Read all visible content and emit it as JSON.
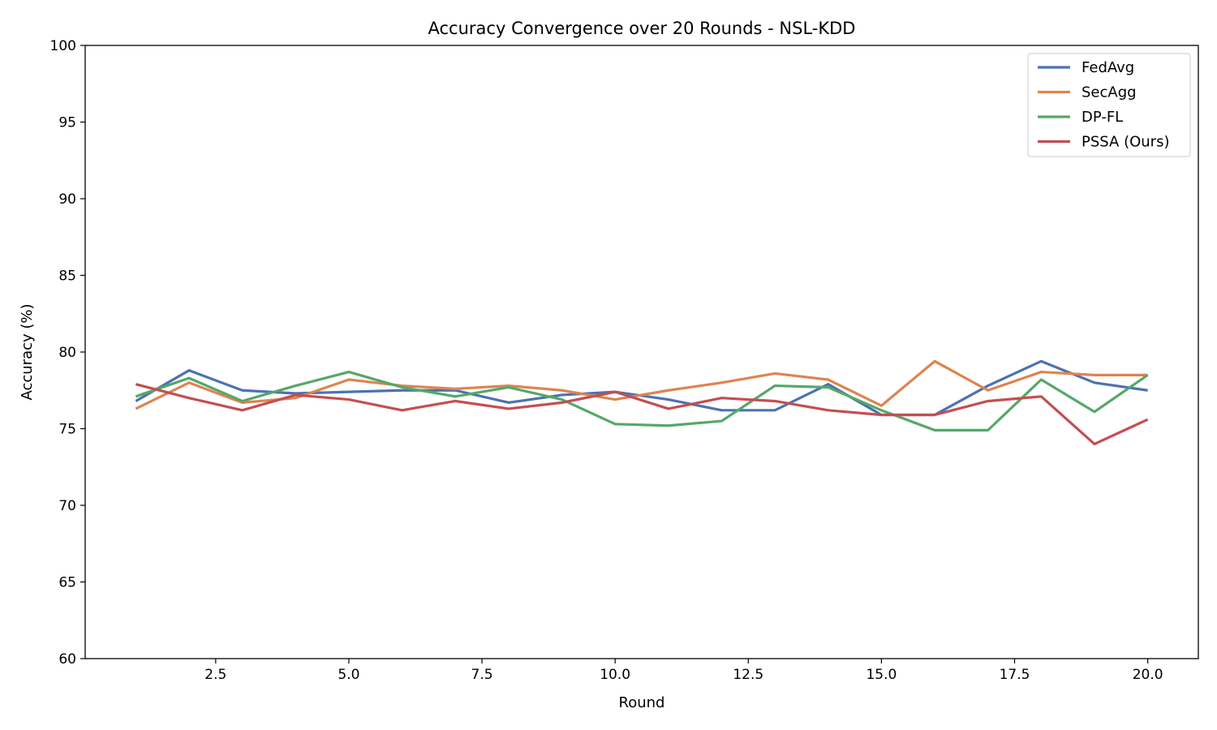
{
  "chart_data": {
    "type": "line",
    "title": "Accuracy Convergence over 20 Rounds - NSL-KDD",
    "xlabel": "Round",
    "ylabel": "Accuracy (%)",
    "xlim": [
      0.05,
      20.95
    ],
    "ylim": [
      60,
      100
    ],
    "xticks": [
      2.5,
      5.0,
      7.5,
      10.0,
      12.5,
      15.0,
      17.5,
      20.0
    ],
    "xtick_labels": [
      "2.5",
      "5.0",
      "7.5",
      "10.0",
      "12.5",
      "15.0",
      "17.5",
      "20.0"
    ],
    "yticks": [
      60,
      65,
      70,
      75,
      80,
      85,
      90,
      95,
      100
    ],
    "ytick_labels": [
      "60",
      "65",
      "70",
      "75",
      "80",
      "85",
      "90",
      "95",
      "100"
    ],
    "grid": false,
    "legend_position": "top-right",
    "x": [
      1,
      2,
      3,
      4,
      5,
      6,
      7,
      8,
      9,
      10,
      11,
      12,
      13,
      14,
      15,
      16,
      17,
      18,
      19,
      20
    ],
    "series": [
      {
        "name": "FedAvg",
        "color": "#4c72b0",
        "values": [
          76.8,
          78.8,
          77.5,
          77.3,
          77.4,
          77.5,
          77.5,
          76.7,
          77.2,
          77.4,
          76.9,
          76.2,
          76.2,
          77.9,
          75.9,
          75.9,
          77.8,
          79.4,
          78.0,
          77.5
        ]
      },
      {
        "name": "SecAgg",
        "color": "#dd8452",
        "values": [
          76.3,
          78.0,
          76.7,
          77.0,
          78.2,
          77.8,
          77.6,
          77.8,
          77.5,
          76.9,
          77.5,
          78.0,
          78.6,
          78.2,
          76.5,
          79.4,
          77.5,
          78.7,
          78.5,
          78.5
        ]
      },
      {
        "name": "DP-FL",
        "color": "#55a868",
        "values": [
          77.1,
          78.3,
          76.8,
          77.8,
          78.7,
          77.7,
          77.1,
          77.7,
          76.9,
          75.3,
          75.2,
          75.5,
          77.8,
          77.7,
          76.2,
          74.9,
          74.9,
          78.2,
          76.1,
          78.5
        ]
      },
      {
        "name": "PSSA (Ours)",
        "color": "#c44e52",
        "values": [
          77.9,
          77.0,
          76.2,
          77.2,
          76.9,
          76.2,
          76.8,
          76.3,
          76.7,
          77.4,
          76.3,
          77.0,
          76.8,
          76.2,
          75.9,
          75.9,
          76.8,
          77.1,
          74.0,
          75.6
        ]
      }
    ]
  }
}
